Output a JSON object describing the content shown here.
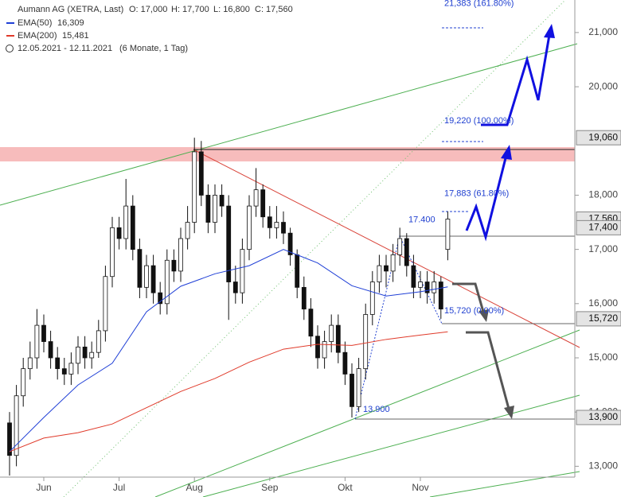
{
  "header": {
    "title": "Aumann AG (XETRA, Last)",
    "open": "O: 17,000",
    "high": "H: 17,700",
    "low": "L: 16,800",
    "close": "C: 17,560",
    "range": "12.05.2021 - 12.11.2021",
    "period": "(6 Monate, 1 Tag)"
  },
  "chart_data": {
    "type": "candlestick",
    "categories": [
      null,
      null,
      null,
      null,
      null,
      "Jun",
      null,
      null,
      null,
      null,
      null,
      null,
      null,
      null,
      null,
      null,
      "Jul",
      null,
      null,
      null,
      null,
      null,
      null,
      null,
      null,
      null,
      null,
      "Aug",
      null,
      null,
      null,
      null,
      null,
      null,
      null,
      null,
      null,
      null,
      "Sep",
      null,
      null,
      null,
      null,
      null,
      null,
      null,
      null,
      null,
      null,
      "Okt",
      null,
      null,
      null,
      null,
      null,
      null,
      null,
      null,
      null,
      null,
      "Nov",
      null,
      null,
      null,
      null
    ],
    "open": [
      13800,
      13200,
      14300,
      14800,
      15000,
      15600,
      15300,
      15000,
      14800,
      14700,
      14900,
      15200,
      15000,
      15100,
      15500,
      16500,
      17400,
      17200,
      17800,
      17000,
      16300,
      16700,
      16200,
      16000,
      16800,
      16600,
      17200,
      17500,
      18800,
      18000,
      17500,
      18000,
      17800,
      16400,
      16200,
      17000,
      17800,
      18100,
      17600,
      17400,
      17500,
      17300,
      16900,
      16300,
      15900,
      15400,
      15000,
      15300,
      15600,
      15100,
      14700,
      14100,
      14800,
      15800,
      16400,
      16700,
      16600,
      16900,
      17200,
      16700,
      16300,
      16400,
      16200,
      16400,
      17000
    ],
    "high": [
      14000,
      14500,
      15000,
      15300,
      15900,
      15800,
      15500,
      15200,
      15000,
      15100,
      15400,
      15400,
      15300,
      15700,
      16700,
      17600,
      17600,
      18300,
      18000,
      17200,
      16900,
      16900,
      16400,
      17000,
      17000,
      17400,
      17800,
      19060,
      19000,
      18200,
      18200,
      18200,
      18000,
      16700,
      17200,
      18000,
      18500,
      18200,
      17800,
      17800,
      17700,
      17400,
      17000,
      16500,
      16100,
      15600,
      15500,
      15800,
      15800,
      15300,
      14900,
      15000,
      16000,
      16600,
      16900,
      16900,
      17100,
      17400,
      17300,
      16900,
      16600,
      16600,
      16600,
      16500,
      17700
    ],
    "low": [
      12830,
      13000,
      14100,
      14600,
      14800,
      15100,
      14800,
      14600,
      14500,
      14500,
      14700,
      14800,
      14800,
      15000,
      15300,
      16300,
      17000,
      17000,
      16800,
      16100,
      16100,
      16000,
      15800,
      15800,
      16400,
      16400,
      17000,
      17300,
      17800,
      17300,
      17300,
      17600,
      15700,
      16000,
      16000,
      16800,
      17600,
      17400,
      17200,
      17200,
      17100,
      16700,
      16100,
      15700,
      15200,
      14800,
      14800,
      15100,
      14900,
      14500,
      13900,
      14000,
      14600,
      15600,
      16200,
      16300,
      16400,
      16700,
      16500,
      16100,
      16100,
      16000,
      16000,
      15720,
      16800
    ],
    "close": [
      13200,
      14300,
      14800,
      15000,
      15600,
      15300,
      15000,
      14800,
      14700,
      14900,
      15200,
      15000,
      15100,
      15500,
      16500,
      17400,
      17200,
      17800,
      17000,
      16300,
      16700,
      16200,
      16000,
      16800,
      16600,
      17200,
      17500,
      18800,
      18000,
      17500,
      18000,
      17800,
      16400,
      16200,
      17000,
      17800,
      18100,
      17600,
      17400,
      17500,
      17300,
      16900,
      16300,
      15900,
      15400,
      15000,
      15300,
      15600,
      15100,
      14700,
      14100,
      14800,
      15800,
      16400,
      16700,
      16600,
      16900,
      17200,
      16700,
      16300,
      16400,
      16200,
      16400,
      15900,
      17560
    ],
    "series": [
      {
        "name": "EMA(50)",
        "value_label": "16,309",
        "color": "#1f3fd6",
        "x": [
          0,
          5,
          10,
          15,
          20,
          25,
          30,
          35,
          40,
          45,
          50,
          55,
          60,
          64
        ],
        "values": [
          13270,
          13900,
          14500,
          14900,
          15850,
          16320,
          16550,
          16700,
          17000,
          16750,
          16330,
          16140,
          16220,
          16309
        ]
      },
      {
        "name": "EMA(200)",
        "value_label": "15,481",
        "color": "#e03a2a",
        "x": [
          0,
          5,
          10,
          15,
          20,
          25,
          30,
          35,
          40,
          45,
          50,
          55,
          60,
          64
        ],
        "values": [
          13270,
          13520,
          13620,
          13780,
          14080,
          14380,
          14620,
          14920,
          15160,
          15250,
          15230,
          15340,
          15420,
          15481
        ]
      }
    ],
    "ylim": [
      12800,
      21600
    ],
    "yticks": [
      {
        "value": 13000,
        "label": "13,000"
      },
      {
        "value": 14000,
        "label": "14,000"
      },
      {
        "value": 15000,
        "label": "15,000"
      },
      {
        "value": 16000,
        "label": "16,000"
      },
      {
        "value": 17000,
        "label": "17,000"
      },
      {
        "value": 18000,
        "label": "18,000"
      },
      {
        "value": 20000,
        "label": "20,000"
      },
      {
        "value": 21000,
        "label": "21,000"
      }
    ],
    "levels": [
      {
        "value": 19060,
        "label": "19,060"
      },
      {
        "value": 17560,
        "label": "17,560"
      },
      {
        "value": 17400,
        "label": "17,400"
      },
      {
        "value": 15720,
        "label": "15,720"
      },
      {
        "value": 13900,
        "label": "13,900"
      }
    ],
    "annotations": [
      {
        "value": 21383,
        "label": "21,383 (161.80%)"
      },
      {
        "value": 19220,
        "label": "19,220 (100.00%)"
      },
      {
        "value": 17883,
        "label": "17,883 (61.80%)"
      },
      {
        "value": 17400,
        "label": "17.400"
      },
      {
        "value": 15720,
        "label": "15,720 (0.00%)"
      },
      {
        "value": 13900,
        "label": "13.900"
      }
    ]
  }
}
